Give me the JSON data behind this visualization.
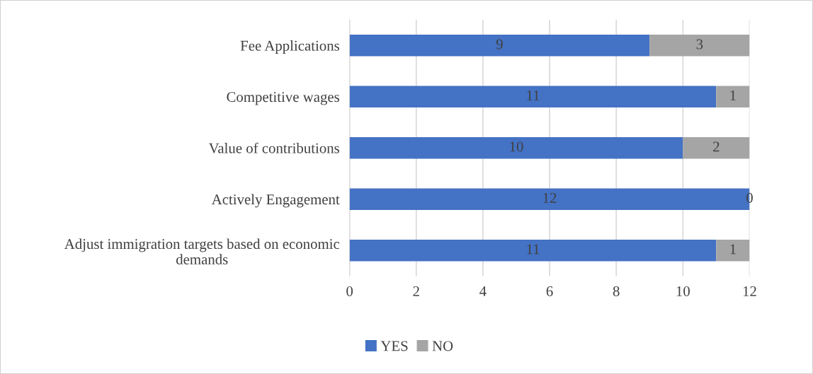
{
  "chart_data": {
    "type": "bar",
    "orientation": "horizontal",
    "stacked": true,
    "categories": [
      "Fee Applications",
      "Competitive wages",
      "Value of contributions",
      "Actively Engagement",
      "Adjust immigration targets based on economic\ndemands"
    ],
    "series": [
      {
        "name": "YES",
        "color": "#4472c4",
        "values": [
          9,
          11,
          10,
          12,
          11
        ]
      },
      {
        "name": "NO",
        "color": "#a5a5a5",
        "values": [
          3,
          1,
          2,
          0,
          1
        ]
      }
    ],
    "xlim": [
      0,
      12
    ],
    "xticks": [
      0,
      2,
      4,
      6,
      8,
      10,
      12
    ],
    "grid": "x",
    "legend": "bottom",
    "data_labels": true
  }
}
